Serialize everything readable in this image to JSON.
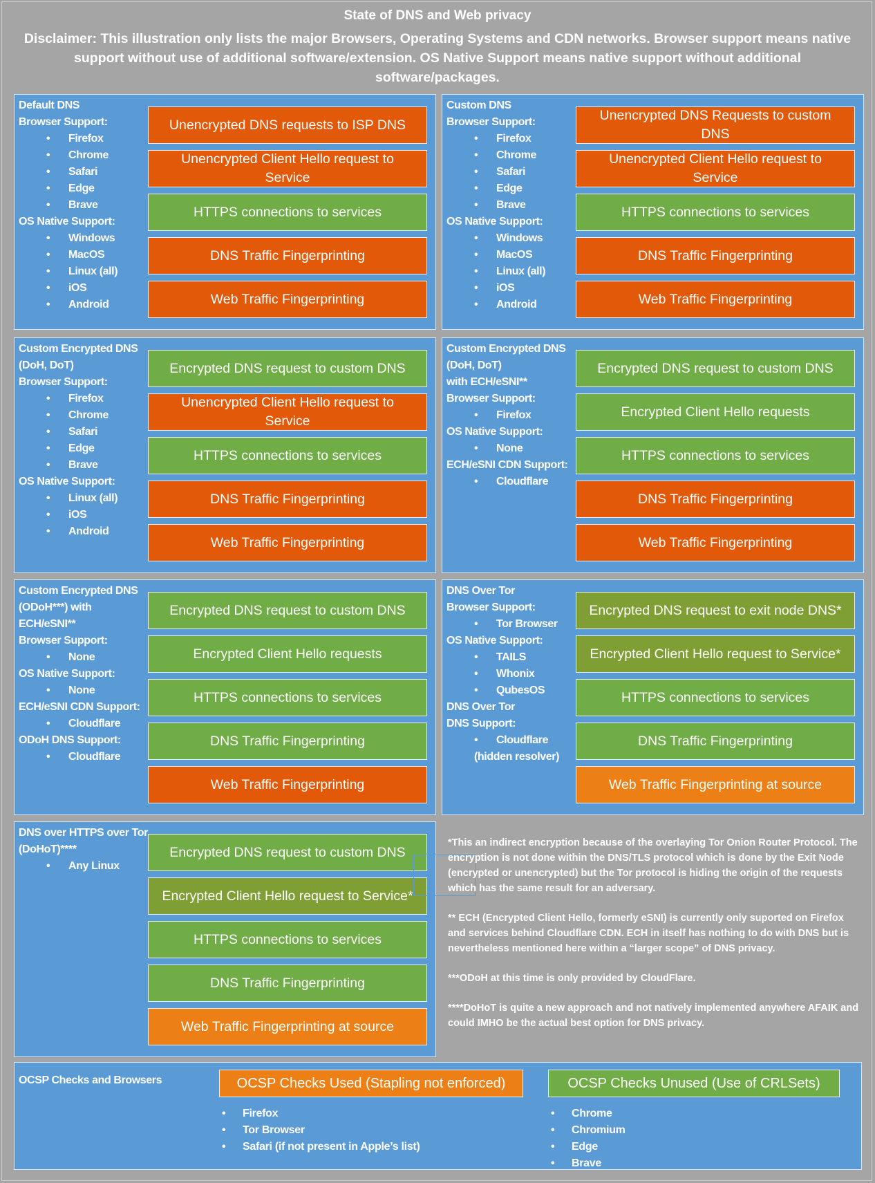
{
  "header": {
    "title": "State of DNS and Web privacy",
    "disclaimer": "Disclaimer: This illustration only lists the major Browsers, Operating Systems and CDN networks. Browser support means native support without use of additional software/extension. OS Native Support means native support without additional software/packages."
  },
  "colors": {
    "background": "#a5a5a5",
    "panel": "#5b9bd5",
    "unencrypted": "#e3590a",
    "encrypted": "#70ad47",
    "indirect": "#7f9f35",
    "at_source": "#ed7f17"
  },
  "panels": [
    {
      "lines": [
        {
          "t": "h",
          "text": "Default DNS"
        },
        {
          "t": "h",
          "text": "Browser Support:"
        },
        {
          "t": "b",
          "text": "Firefox"
        },
        {
          "t": "b",
          "text": "Chrome"
        },
        {
          "t": "b",
          "text": "Safari"
        },
        {
          "t": "b",
          "text": "Edge"
        },
        {
          "t": "b",
          "text": "Brave"
        },
        {
          "t": "h",
          "text": "OS Native Support:"
        },
        {
          "t": "b",
          "text": "Windows"
        },
        {
          "t": "b",
          "text": "MacOS"
        },
        {
          "t": "b",
          "text": "Linux (all)"
        },
        {
          "t": "b",
          "text": "iOS"
        },
        {
          "t": "b",
          "text": "Android"
        }
      ],
      "boxes": [
        {
          "text": "Unencrypted DNS requests to ISP DNS",
          "color": "orange"
        },
        {
          "text": "Unencrypted Client Hello request to Service",
          "color": "orange"
        },
        {
          "text": "HTTPS connections to services",
          "color": "green"
        },
        {
          "text": "DNS Traffic Fingerprinting",
          "color": "orange"
        },
        {
          "text": "Web Traffic Fingerprinting",
          "color": "orange"
        }
      ]
    },
    {
      "lines": [
        {
          "t": "h",
          "text": "Custom DNS"
        },
        {
          "t": "h",
          "text": "Browser Support:"
        },
        {
          "t": "b",
          "text": "Firefox"
        },
        {
          "t": "b",
          "text": "Chrome"
        },
        {
          "t": "b",
          "text": "Safari"
        },
        {
          "t": "b",
          "text": "Edge"
        },
        {
          "t": "b",
          "text": "Brave"
        },
        {
          "t": "h",
          "text": "OS Native Support:"
        },
        {
          "t": "b",
          "text": "Windows"
        },
        {
          "t": "b",
          "text": "MacOS"
        },
        {
          "t": "b",
          "text": "Linux (all)"
        },
        {
          "t": "b",
          "text": "iOS"
        },
        {
          "t": "b",
          "text": "Android"
        }
      ],
      "boxes": [
        {
          "text": "Unencrypted DNS Requests to custom DNS",
          "color": "orange"
        },
        {
          "text": "Unencrypted Client Hello request to Service",
          "color": "orange"
        },
        {
          "text": "HTTPS connections to services",
          "color": "green"
        },
        {
          "text": "DNS Traffic Fingerprinting",
          "color": "orange"
        },
        {
          "text": "Web Traffic Fingerprinting",
          "color": "orange"
        }
      ]
    },
    {
      "lines": [
        {
          "t": "h",
          "text": "Custom Encrypted DNS"
        },
        {
          "t": "h",
          "text": "(DoH, DoT)"
        },
        {
          "t": "h",
          "text": "Browser Support:"
        },
        {
          "t": "b",
          "text": "Firefox"
        },
        {
          "t": "b",
          "text": "Chrome"
        },
        {
          "t": "b",
          "text": "Safari"
        },
        {
          "t": "b",
          "text": "Edge"
        },
        {
          "t": "b",
          "text": "Brave"
        },
        {
          "t": "h",
          "text": "OS Native Support:"
        },
        {
          "t": "b",
          "text": "Linux (all)"
        },
        {
          "t": "b",
          "text": "iOS"
        },
        {
          "t": "b",
          "text": "Android"
        }
      ],
      "boxes": [
        {
          "text": "Encrypted DNS request to custom DNS",
          "color": "green"
        },
        {
          "text": "Unencrypted Client Hello request to Service",
          "color": "orange"
        },
        {
          "text": "HTTPS connections to services",
          "color": "green"
        },
        {
          "text": "DNS Traffic Fingerprinting",
          "color": "orange"
        },
        {
          "text": "Web Traffic Fingerprinting",
          "color": "orange"
        }
      ]
    },
    {
      "lines": [
        {
          "t": "h",
          "text": "Custom Encrypted DNS"
        },
        {
          "t": "h",
          "text": "(DoH, DoT)"
        },
        {
          "t": "h",
          "text": "with ECH/eSNI**"
        },
        {
          "t": "h",
          "text": "Browser Support:"
        },
        {
          "t": "b",
          "text": "Firefox"
        },
        {
          "t": "h",
          "text": "OS Native Support:"
        },
        {
          "t": "b",
          "text": "None"
        },
        {
          "t": "h",
          "text": "ECH/eSNI CDN Support:"
        },
        {
          "t": "b",
          "text": "Cloudflare"
        }
      ],
      "boxes": [
        {
          "text": "Encrypted DNS request to custom DNS",
          "color": "green"
        },
        {
          "text": "Encrypted Client Hello requests",
          "color": "green"
        },
        {
          "text": "HTTPS connections to services",
          "color": "green"
        },
        {
          "text": "DNS Traffic Fingerprinting",
          "color": "orange"
        },
        {
          "text": "Web Traffic Fingerprinting",
          "color": "orange"
        }
      ]
    },
    {
      "lines": [
        {
          "t": "h",
          "text": "Custom Encrypted DNS"
        },
        {
          "t": "h",
          "text": "(ODoH***) with"
        },
        {
          "t": "h",
          "text": "ECH/eSNI**"
        },
        {
          "t": "h",
          "text": "Browser Support:"
        },
        {
          "t": "b",
          "text": "None"
        },
        {
          "t": "h",
          "text": "OS Native Support:"
        },
        {
          "t": "b",
          "text": "None"
        },
        {
          "t": "h",
          "text": "ECH/eSNI CDN Support:"
        },
        {
          "t": "b",
          "text": "Cloudflare"
        },
        {
          "t": "h",
          "text": "ODoH DNS Support:"
        },
        {
          "t": "b",
          "text": "Cloudflare"
        }
      ],
      "boxes": [
        {
          "text": "Encrypted DNS request to custom DNS",
          "color": "green"
        },
        {
          "text": "Encrypted Client Hello requests",
          "color": "green"
        },
        {
          "text": "HTTPS connections to services",
          "color": "green"
        },
        {
          "text": "DNS Traffic Fingerprinting",
          "color": "green"
        },
        {
          "text": "Web Traffic Fingerprinting",
          "color": "orange"
        }
      ]
    },
    {
      "lines": [
        {
          "t": "h",
          "text": "DNS Over Tor"
        },
        {
          "t": "h",
          "text": "Browser Support:"
        },
        {
          "t": "b",
          "text": "Tor Browser"
        },
        {
          "t": "h",
          "text": "OS Native Support:"
        },
        {
          "t": "b",
          "text": "TAILS"
        },
        {
          "t": "b",
          "text": "Whonix"
        },
        {
          "t": "b",
          "text": "QubesOS"
        },
        {
          "t": "h",
          "text": "DNS Over Tor"
        },
        {
          "t": "h",
          "text": "DNS Support:"
        },
        {
          "t": "b",
          "text": "Cloudflare"
        },
        {
          "t": "c",
          "text": "(hidden resolver)"
        }
      ],
      "boxes": [
        {
          "text": "Encrypted DNS request to exit node DNS*",
          "color": "olive"
        },
        {
          "text": "Encrypted Client Hello request to Service*",
          "color": "olive"
        },
        {
          "text": "HTTPS connections to services",
          "color": "green"
        },
        {
          "text": "DNS Traffic Fingerprinting",
          "color": "green"
        },
        {
          "text": "Web Traffic Fingerprinting at source",
          "color": "lorange"
        }
      ]
    },
    {
      "lines": [
        {
          "t": "h",
          "text": "DNS over HTTPS over Tor"
        },
        {
          "t": "h",
          "text": "(DoHoT)****"
        },
        {
          "t": "b",
          "text": "Any Linux"
        }
      ],
      "boxes": [
        {
          "text": "Encrypted DNS request to custom DNS",
          "color": "green"
        },
        {
          "text": "Encrypted Client Hello request to Service*",
          "color": "olive"
        },
        {
          "text": "HTTPS connections to services",
          "color": "green"
        },
        {
          "text": "DNS Traffic Fingerprinting",
          "color": "green"
        },
        {
          "text": "Web Traffic Fingerprinting at source",
          "color": "lorange"
        }
      ]
    }
  ],
  "notes": [
    "*This an indirect encryption because of the overlaying Tor Onion Router Protocol. The encryption is not done within the DNS/TLS protocol which is done by the Exit Node (encrypted or unencrypted) but the Tor protocol is hiding the origin of the requests which has the same result for an adversary.",
    "** ECH (Encrypted Client Hello, formerly eSNI) is currently only suported on Firefox and services behind Cloudflare CDN. ECH in itself has nothing to do with DNS but is nevertheless mentioned here within a “larger scope” of DNS privacy.",
    "***ODoH at this time is only provided by CloudFlare.",
    "****DoHoT is quite a new approach and not natively implemented anywhere AFAIK and could IMHO be the actual best option for DNS privacy."
  ],
  "ocsp": {
    "label": "OCSP Checks and Browsers",
    "used": {
      "title": "OCSP Checks Used (Stapling not enforced)",
      "items": [
        "Firefox",
        "Tor Browser",
        "Safari (if not present in Apple’s list)"
      ]
    },
    "unused": {
      "title": "OCSP Checks Unused (Use of CRLSets)",
      "items": [
        "Chrome",
        "Chromium",
        "Edge",
        "Brave"
      ]
    }
  }
}
